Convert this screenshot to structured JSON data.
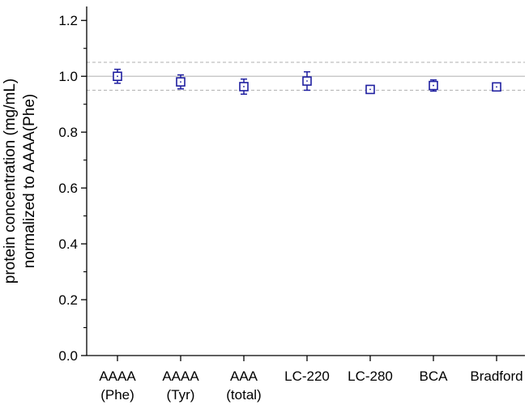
{
  "chart_data": {
    "type": "scatter",
    "categories": [
      [
        "AAAA",
        "(Phe)"
      ],
      [
        "AAAA",
        "(Tyr)"
      ],
      [
        "AAA",
        "(total)"
      ],
      [
        "LC-220"
      ],
      [
        "LC-280"
      ],
      [
        "BCA"
      ],
      [
        "Bradford"
      ]
    ],
    "values": [
      1.0,
      0.98,
      0.963,
      0.983,
      0.953,
      0.967,
      0.962
    ],
    "errors": [
      0.025,
      0.025,
      0.027,
      0.033,
      0.01,
      0.02,
      0.01
    ],
    "ylabel_lines": [
      "protein concentration (mg/mL)",
      "normalized to AAAA(Phe)"
    ],
    "ylim": [
      0,
      1.25
    ],
    "yticks": [
      0.0,
      0.2,
      0.4,
      0.6,
      0.8,
      1.0,
      1.2
    ],
    "ytick_labels": [
      "0.0",
      "0.2",
      "0.4",
      "0.6",
      "0.8",
      "1.0",
      "1.2"
    ],
    "reference_lines": [
      {
        "y": 1.0,
        "style": "solid",
        "color": "#b8b8b8"
      },
      {
        "y": 1.05,
        "style": "dashed",
        "color": "#b8b8b8"
      },
      {
        "y": 0.95,
        "style": "dashed",
        "color": "#b8b8b8"
      }
    ],
    "marker": "open-square",
    "color": "#1f1fa0",
    "grid": false
  }
}
